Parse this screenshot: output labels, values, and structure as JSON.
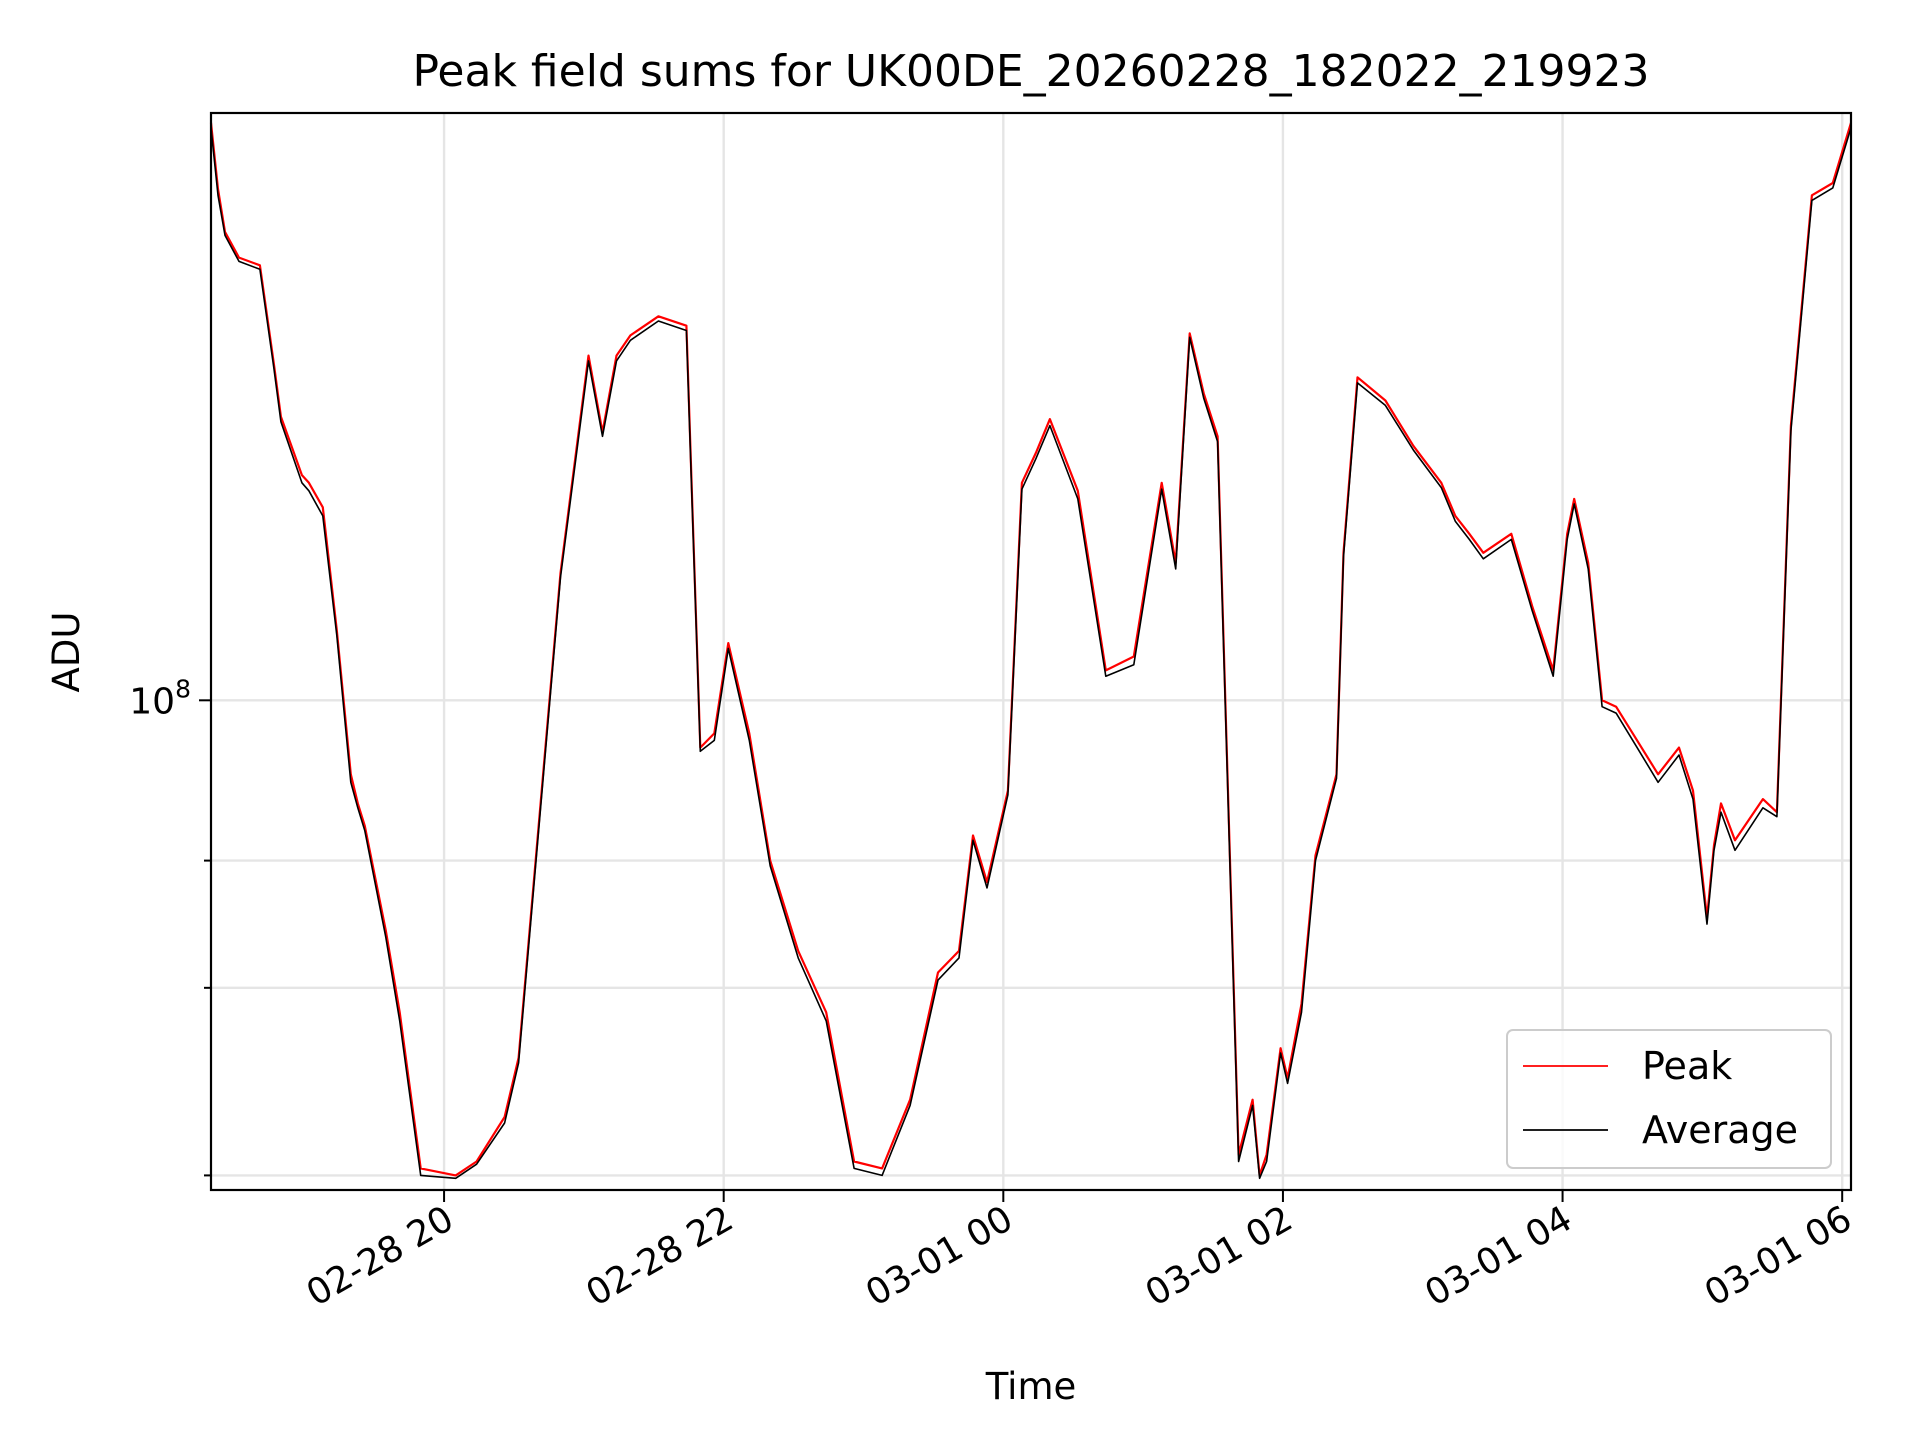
{
  "chart_data": {
    "type": "line",
    "title": "Peak field sums for UK00DE_20260228_182022_219923",
    "xlabel": "Time",
    "ylabel": "ADU",
    "yscale": "log",
    "x_unit": "hours since 02-28 18:20",
    "xlim": [
      0.0,
      11.73
    ],
    "ylim": [
      21000000,
      650000000
    ],
    "grid": true,
    "legend": "lower-right",
    "xticks": [
      {
        "value": 1.667,
        "label": "02-28 20"
      },
      {
        "value": 3.667,
        "label": "02-28 22"
      },
      {
        "value": 5.667,
        "label": "03-01 00"
      },
      {
        "value": 7.667,
        "label": "03-01 02"
      },
      {
        "value": 9.667,
        "label": "03-01 04"
      },
      {
        "value": 11.667,
        "label": "03-01 06"
      }
    ],
    "yticks_major": [
      {
        "value": 100000000,
        "label": "10",
        "exp": "8"
      }
    ],
    "yticks_minor": [
      22000000,
      40000000,
      60000000
    ],
    "x": [
      0.0,
      0.05,
      0.1,
      0.2,
      0.35,
      0.45,
      0.5,
      0.65,
      0.7,
      0.8,
      0.9,
      1.0,
      1.05,
      1.1,
      1.25,
      1.35,
      1.5,
      1.75,
      1.9,
      2.1,
      2.2,
      2.5,
      2.7,
      2.8,
      2.9,
      3.0,
      3.2,
      3.4,
      3.5,
      3.6,
      3.7,
      3.85,
      4.0,
      4.2,
      4.4,
      4.6,
      4.8,
      5.0,
      5.2,
      5.35,
      5.45,
      5.55,
      5.7,
      5.8,
      5.9,
      6.0,
      6.2,
      6.4,
      6.6,
      6.8,
      6.9,
      7.0,
      7.1,
      7.2,
      7.35,
      7.45,
      7.5,
      7.55,
      7.65,
      7.7,
      7.8,
      7.9,
      8.05,
      8.1,
      8.2,
      8.4,
      8.6,
      8.8,
      8.9,
      9.0,
      9.1,
      9.3,
      9.45,
      9.6,
      9.7,
      9.75,
      9.85,
      9.95,
      10.05,
      10.2,
      10.35,
      10.5,
      10.6,
      10.7,
      10.75,
      10.8,
      10.9,
      11.1,
      11.2,
      11.3,
      11.45,
      11.6,
      11.73
    ],
    "series": [
      {
        "name": "Peak",
        "color": "#ff0000",
        "values": [
          630000000,
          510000000,
          445000000,
          410000000,
          400000000,
          292000000,
          247000000,
          205000000,
          200000000,
          185000000,
          125000000,
          79000000,
          72000000,
          67000000,
          48000000,
          37000000,
          22500000,
          22000000,
          23000000,
          26500000,
          32000000,
          150000000,
          300000000,
          235000000,
          300000000,
          320000000,
          340000000,
          330000000,
          86000000,
          90000000,
          120000000,
          90000000,
          60000000,
          45000000,
          37000000,
          23000000,
          22500000,
          28000000,
          42000000,
          45000000,
          65000000,
          56000000,
          75000000,
          200000000,
          220000000,
          245000000,
          195000000,
          110000000,
          115000000,
          200000000,
          155000000,
          322000000,
          266000000,
          232000000,
          23500000,
          28000000,
          22000000,
          23500000,
          33000000,
          30000000,
          38000000,
          61000000,
          79000000,
          160000000,
          280000000,
          260000000,
          225000000,
          200000000,
          180000000,
          170000000,
          160000000,
          170000000,
          135000000,
          110000000,
          170000000,
          190000000,
          155000000,
          100000000,
          98000000,
          88000000,
          79000000,
          86000000,
          75000000,
          50000000,
          63000000,
          72000000,
          64000000,
          73000000,
          70000000,
          240000000,
          500000000,
          520000000,
          630000000
        ]
      },
      {
        "name": "Average",
        "color": "#000000",
        "values": [
          620000000,
          500000000,
          440000000,
          405000000,
          395000000,
          288000000,
          243000000,
          200000000,
          195000000,
          180000000,
          123000000,
          77000000,
          71000000,
          66000000,
          47000000,
          36000000,
          22000000,
          21800000,
          22800000,
          26000000,
          31500000,
          148000000,
          295000000,
          232000000,
          295000000,
          315000000,
          335000000,
          325000000,
          85000000,
          88000000,
          118000000,
          88000000,
          59000000,
          44000000,
          36000000,
          22500000,
          22000000,
          27500000,
          41000000,
          44000000,
          64000000,
          55000000,
          74000000,
          196000000,
          216000000,
          240000000,
          190000000,
          108000000,
          112000000,
          196000000,
          152000000,
          318000000,
          262000000,
          228000000,
          23000000,
          27500000,
          21800000,
          23000000,
          32500000,
          29500000,
          37000000,
          60000000,
          78000000,
          158000000,
          275000000,
          256000000,
          222000000,
          197000000,
          177000000,
          167000000,
          157000000,
          167000000,
          133000000,
          108000000,
          167000000,
          187000000,
          152000000,
          98000000,
          96000000,
          86000000,
          77000000,
          84000000,
          73000000,
          49000000,
          62000000,
          70000000,
          62000000,
          71000000,
          69000000,
          236000000,
          492000000,
          512000000,
          620000000
        ]
      }
    ]
  }
}
